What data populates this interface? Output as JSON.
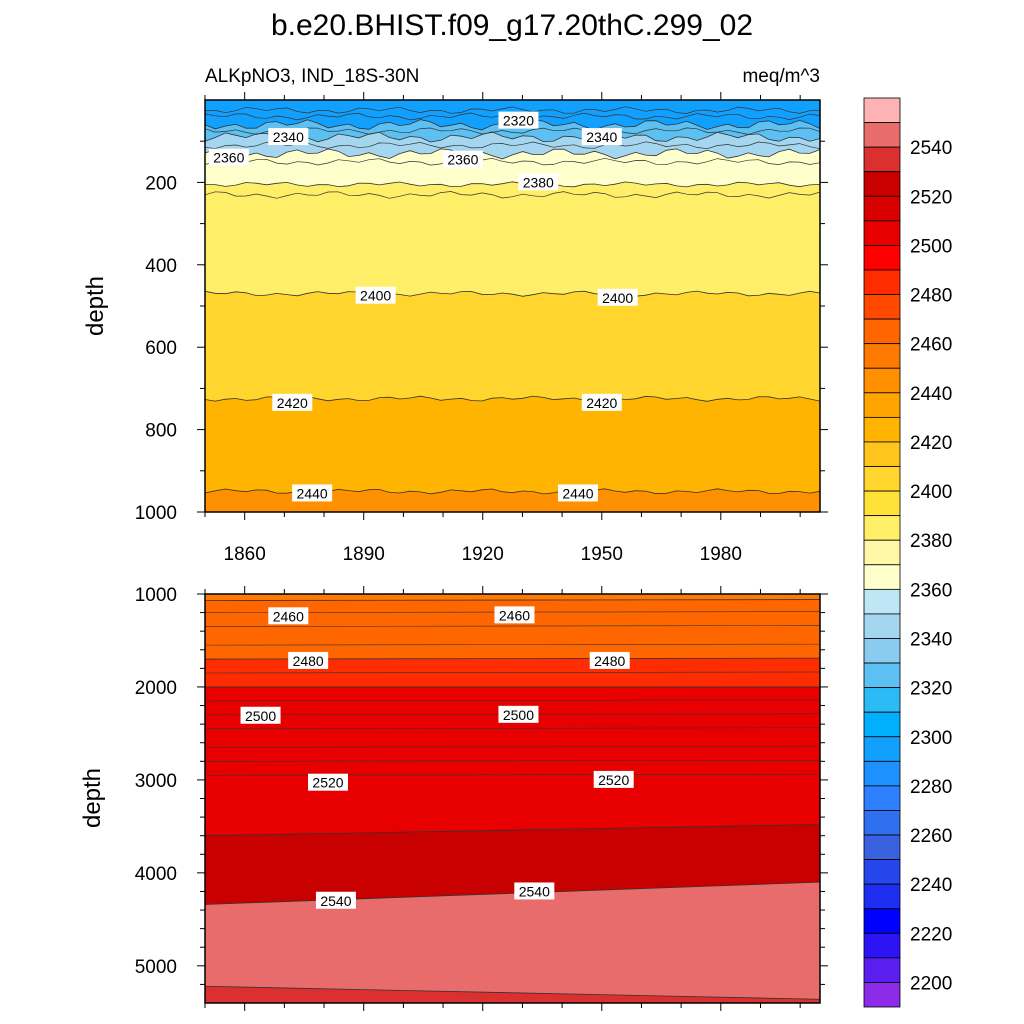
{
  "title": "b.e20.BHIST.f09_g17.20thC.299_02",
  "subtitle_left": "ALKpNO3, IND_18S-30N",
  "subtitle_right": "meq/m^3",
  "chart_data": [
    {
      "type": "contour",
      "panel": "upper",
      "ylabel": "depth",
      "xlim": [
        1850,
        2005
      ],
      "ylim": [
        1000,
        0
      ],
      "xticks": [
        1860,
        1890,
        1920,
        1950,
        1980
      ],
      "yticks": [
        200,
        400,
        600,
        800,
        1000
      ],
      "levels": [
        {
          "value": 2320,
          "depth": 60
        },
        {
          "value": 2340,
          "depth": 90
        },
        {
          "value": 2360,
          "depth": 130
        },
        {
          "value": 2380,
          "depth": 205
        },
        {
          "value": 2400,
          "depth": 470
        },
        {
          "value": 2420,
          "depth": 725
        },
        {
          "value": 2440,
          "depth": 950
        }
      ],
      "contour_labels": [
        {
          "text": "2320",
          "year": 1929,
          "depth": 50
        },
        {
          "text": "2340",
          "year": 1871,
          "depth": 90
        },
        {
          "text": "2340",
          "year": 1950,
          "depth": 90
        },
        {
          "text": "2360",
          "year": 1856,
          "depth": 140
        },
        {
          "text": "2360",
          "year": 1915,
          "depth": 145
        },
        {
          "text": "2380",
          "year": 1934,
          "depth": 200
        },
        {
          "text": "2400",
          "year": 1893,
          "depth": 475
        },
        {
          "text": "2400",
          "year": 1954,
          "depth": 480
        },
        {
          "text": "2420",
          "year": 1872,
          "depth": 735
        },
        {
          "text": "2420",
          "year": 1950,
          "depth": 735
        },
        {
          "text": "2440",
          "year": 1877,
          "depth": 955
        },
        {
          "text": "2440",
          "year": 1944,
          "depth": 955
        }
      ]
    },
    {
      "type": "contour",
      "panel": "lower",
      "ylabel": "depth",
      "xlim": [
        1850,
        2005
      ],
      "ylim": [
        5400,
        1000
      ],
      "yticks": [
        1000,
        2000,
        3000,
        4000,
        5000
      ],
      "levels": [
        {
          "value": 2460,
          "depth_start": 1070,
          "depth_end": 1060
        },
        {
          "value": 2480,
          "depth_start": 1700,
          "depth_end": 1690
        },
        {
          "value": 2500,
          "depth_start": 2000,
          "depth_end": 2000
        },
        {
          "value": 2520,
          "depth_start": 3600,
          "depth_end": 3480
        },
        {
          "value": 2540,
          "depth_start": 4340,
          "depth_end": 4100
        },
        {
          "value": 2550,
          "depth_start": 5220,
          "depth_end": 5360
        }
      ],
      "contour_labels": [
        {
          "text": "2460",
          "year": 1871,
          "depth": 1240
        },
        {
          "text": "2460",
          "year": 1928,
          "depth": 1230
        },
        {
          "text": "2480",
          "year": 1876,
          "depth": 1720
        },
        {
          "text": "2480",
          "year": 1952,
          "depth": 1720
        },
        {
          "text": "2500",
          "year": 1864,
          "depth": 2310
        },
        {
          "text": "2500",
          "year": 1929,
          "depth": 2300
        },
        {
          "text": "2520",
          "year": 1881,
          "depth": 3030
        },
        {
          "text": "2520",
          "year": 1953,
          "depth": 3000
        },
        {
          "text": "2540",
          "year": 1883,
          "depth": 4300
        },
        {
          "text": "2540",
          "year": 1933,
          "depth": 4200
        }
      ]
    }
  ],
  "colorbar": {
    "labels": [
      "2540",
      "2520",
      "2500",
      "2480",
      "2460",
      "2440",
      "2420",
      "2400",
      "2380",
      "2360",
      "2340",
      "2320",
      "2300",
      "2280",
      "2260",
      "2240",
      "2220",
      "2200"
    ],
    "colors": [
      "#fdb3b3",
      "#e96c6c",
      "#da3030",
      "#c80000",
      "#d80000",
      "#e80000",
      "#ff0000",
      "#ff2c00",
      "#ff4900",
      "#ff6600",
      "#ff7a00",
      "#ff9000",
      "#ffa500",
      "#ffb500",
      "#ffc51d",
      "#ffd52e",
      "#ffe238",
      "#ffee68",
      "#fff7a6",
      "#ffffcc",
      "#bfe6f5",
      "#a5d6f0",
      "#8ccbf0",
      "#5cc0f2",
      "#2dbbf6",
      "#00b0ff",
      "#12a0ff",
      "#1e90ff",
      "#2f80ff",
      "#2f70f0",
      "#3a62e0",
      "#2446ea",
      "#1e2ef0",
      "#0000ff",
      "#2d14f5",
      "#5a1ef0",
      "#8b2be8"
    ]
  }
}
